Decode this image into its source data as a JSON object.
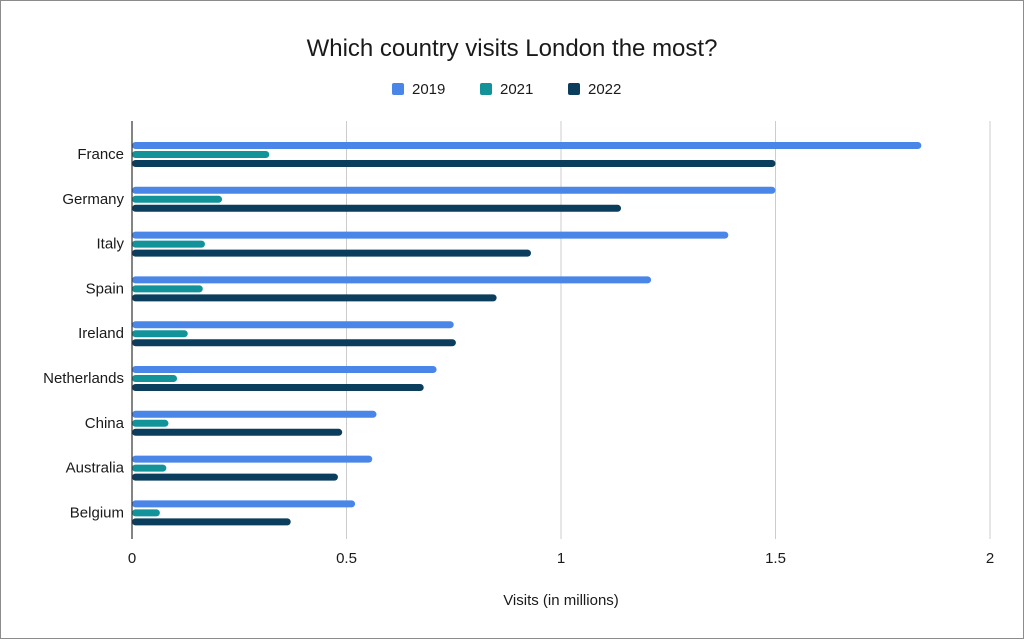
{
  "chart_data": {
    "type": "bar",
    "orientation": "horizontal",
    "title": "Which country visits London the most?",
    "xlabel": "Visits (in millions)",
    "ylabel": "",
    "xlim": [
      0,
      2
    ],
    "x_ticks": [
      "0",
      "0.5",
      "1",
      "1.5",
      "2"
    ],
    "grid": true,
    "legend_position": "top",
    "categories": [
      "France",
      "Germany",
      "Italy",
      "Spain",
      "Ireland",
      "Netherlands",
      "China",
      "Australia",
      "Belgium"
    ],
    "series": [
      {
        "name": "2019",
        "color": "#4a86e8",
        "values": [
          1.84,
          1.5,
          1.39,
          1.21,
          0.75,
          0.71,
          0.57,
          0.56,
          0.52
        ]
      },
      {
        "name": "2021",
        "color": "#12939a",
        "values": [
          0.32,
          0.21,
          0.17,
          0.165,
          0.13,
          0.105,
          0.085,
          0.08,
          0.065
        ]
      },
      {
        "name": "2022",
        "color": "#0b3d5c",
        "values": [
          1.5,
          1.14,
          0.93,
          0.85,
          0.755,
          0.68,
          0.49,
          0.48,
          0.37
        ]
      }
    ]
  }
}
